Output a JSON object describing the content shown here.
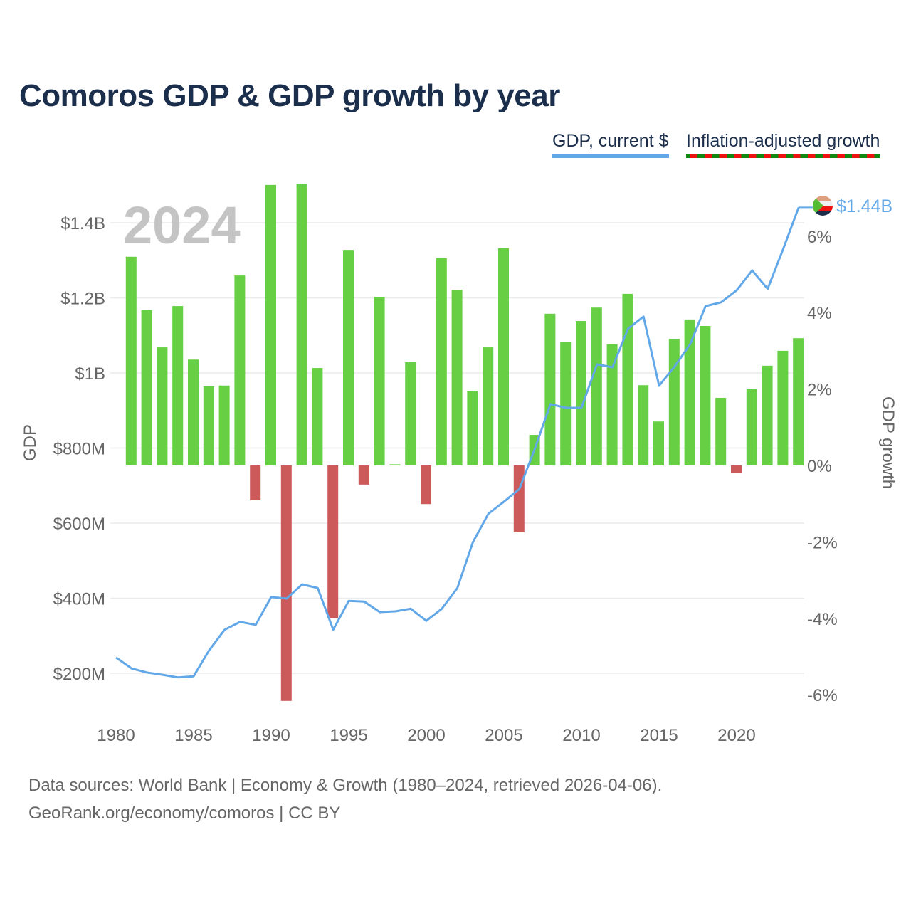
{
  "title": "Comoros GDP & GDP growth by year",
  "legend": {
    "gdp": "GDP, current $",
    "growth": "Inflation-adjusted growth"
  },
  "colors": {
    "positive": "#66cf44",
    "negative": "#cd5a5a",
    "line": "#62a8e8",
    "title": "#1b2f4d"
  },
  "footer": {
    "line1": "Data sources: World Bank | Economy & Growth (1980–2024, retrieved 2026-04-06).",
    "line2": "GeoRank.org/economy/comoros | CC BY"
  },
  "chart_data": {
    "type": "bar+line",
    "title": "Comoros GDP & GDP growth by year",
    "year_label": "2024",
    "end_label": "$1.44B",
    "y_left_label": "GDP",
    "y_right_label": "GDP growth",
    "y_left_ticks": [
      "$200M",
      "$400M",
      "$600M",
      "$800M",
      "$1B",
      "$1.2B",
      "$1.4B"
    ],
    "y_left_tick_values": [
      0.2,
      0.4,
      0.6,
      0.8,
      1.0,
      1.2,
      1.4
    ],
    "y_right_ticks": [
      "-6%",
      "-4%",
      "-2%",
      "0%",
      "2%",
      "4%",
      "6%"
    ],
    "y_right_tick_values": [
      -6,
      -4,
      -2,
      0,
      2,
      4,
      6
    ],
    "x_ticks": [
      "1980",
      "1985",
      "1990",
      "1995",
      "2000",
      "2005",
      "2010",
      "2015",
      "2020"
    ],
    "years": [
      1980,
      1981,
      1982,
      1983,
      1984,
      1985,
      1986,
      1987,
      1988,
      1989,
      1990,
      1991,
      1992,
      1993,
      1994,
      1995,
      1996,
      1997,
      1998,
      1999,
      2000,
      2001,
      2002,
      2003,
      2004,
      2005,
      2006,
      2007,
      2008,
      2009,
      2010,
      2011,
      2012,
      2013,
      2014,
      2015,
      2016,
      2017,
      2018,
      2019,
      2020,
      2021,
      2022,
      2023,
      2024
    ],
    "series": [
      {
        "name": "GDP, current $ (billions)",
        "type": "line",
        "values": [
          0.242,
          0.213,
          0.202,
          0.196,
          0.189,
          0.192,
          0.261,
          0.316,
          0.337,
          0.329,
          0.403,
          0.399,
          0.437,
          0.427,
          0.316,
          0.393,
          0.391,
          0.363,
          0.365,
          0.372,
          0.34,
          0.372,
          0.427,
          0.549,
          0.625,
          0.657,
          0.691,
          0.799,
          0.917,
          0.907,
          0.907,
          1.023,
          1.015,
          1.118,
          1.15,
          0.966,
          1.017,
          1.076,
          1.178,
          1.188,
          1.22,
          1.273,
          1.224,
          1.33,
          1.441
        ]
      },
      {
        "name": "Inflation-adjusted growth (%)",
        "type": "bar",
        "values": [
          null,
          5.46,
          4.06,
          3.09,
          4.17,
          2.77,
          2.07,
          2.09,
          4.97,
          -0.91,
          7.34,
          -6.16,
          7.37,
          2.55,
          -3.99,
          5.64,
          -0.5,
          4.41,
          0.03,
          2.7,
          -1.01,
          5.42,
          4.6,
          1.94,
          3.09,
          5.68,
          -1.75,
          0.8,
          3.97,
          3.24,
          3.78,
          4.13,
          3.17,
          4.49,
          2.1,
          1.15,
          3.31,
          3.82,
          3.65,
          1.77,
          -0.19,
          2.01,
          2.61,
          3.0,
          3.33
        ]
      }
    ],
    "grid": true,
    "legend_position": "top-right"
  }
}
